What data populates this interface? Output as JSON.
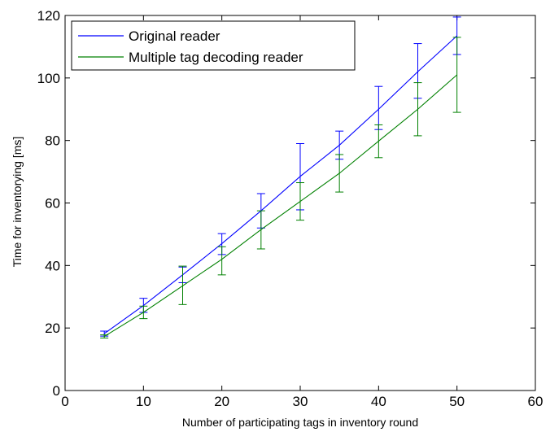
{
  "chart_data": {
    "type": "line",
    "title": "",
    "xlabel": "Number of participating tags in inventory round",
    "ylabel": "Time for inventorying [ms]",
    "xlim": [
      0,
      60
    ],
    "ylim": [
      0,
      120
    ],
    "xticks": [
      0,
      10,
      20,
      30,
      40,
      50,
      60
    ],
    "yticks": [
      0,
      20,
      40,
      60,
      80,
      100,
      120
    ],
    "grid": false,
    "legend_position": "top-left",
    "x": [
      5,
      10,
      15,
      20,
      25,
      30,
      35,
      40,
      45,
      50
    ],
    "series": [
      {
        "name": "Original reader",
        "color": "#0000ff",
        "values": [
          18.2,
          27.2,
          37.0,
          47.0,
          57.5,
          68.5,
          78.5,
          90.0,
          102.0,
          113.5
        ],
        "error_low": [
          17.4,
          25.0,
          34.5,
          43.5,
          52.0,
          57.8,
          74.0,
          83.5,
          93.5,
          107.5
        ],
        "error_high": [
          19.0,
          29.5,
          39.5,
          50.2,
          63.0,
          79.0,
          83.0,
          97.3,
          111.0,
          119.5
        ]
      },
      {
        "name": "Multiple tag decoding reader",
        "color": "#008000",
        "values": [
          17.3,
          25.0,
          33.5,
          42.0,
          51.5,
          60.5,
          69.5,
          79.8,
          90.0,
          101.0
        ],
        "error_low": [
          16.8,
          23.0,
          27.5,
          37.0,
          45.3,
          54.5,
          63.5,
          74.5,
          81.5,
          89.0
        ],
        "error_high": [
          17.8,
          27.0,
          39.8,
          46.0,
          57.5,
          66.5,
          75.5,
          85.0,
          98.5,
          113.0
        ]
      }
    ]
  }
}
